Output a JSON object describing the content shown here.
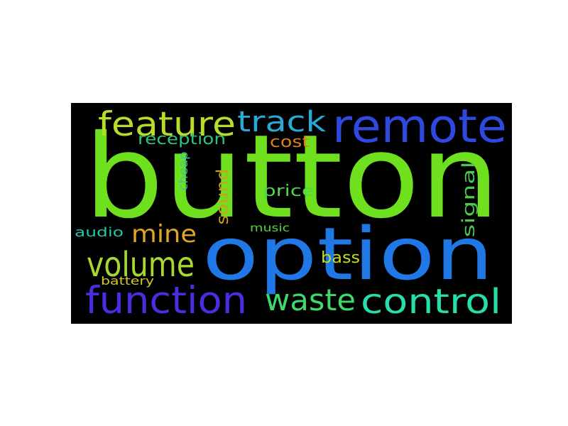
{
  "background_color": "#000000",
  "words": [
    {
      "text": "button",
      "color": "#6fe01e",
      "orientation": "horizontal"
    },
    {
      "text": "option",
      "color": "#1f78e6",
      "orientation": "horizontal"
    },
    {
      "text": "remote",
      "color": "#2f49e0",
      "orientation": "horizontal"
    },
    {
      "text": "feature",
      "color": "#b7dd29",
      "orientation": "horizontal"
    },
    {
      "text": "track",
      "color": "#2aa9d8",
      "orientation": "horizontal"
    },
    {
      "text": "volume",
      "color": "#a6d92f",
      "orientation": "horizontal"
    },
    {
      "text": "function",
      "color": "#4b2ce0",
      "orientation": "horizontal"
    },
    {
      "text": "waste",
      "color": "#3fd96b",
      "orientation": "horizontal"
    },
    {
      "text": "control",
      "color": "#25deaa",
      "orientation": "horizontal"
    },
    {
      "text": "mine",
      "color": "#e0a524",
      "orientation": "horizontal"
    },
    {
      "text": "reception",
      "color": "#2fc27b",
      "orientation": "horizontal"
    },
    {
      "text": "cost",
      "color": "#d97f1c",
      "orientation": "horizontal"
    },
    {
      "text": "price",
      "color": "#4fd64a",
      "orientation": "horizontal"
    },
    {
      "text": "bass",
      "color": "#c5dc26",
      "orientation": "horizontal"
    },
    {
      "text": "audio",
      "color": "#22c5a8",
      "orientation": "horizontal"
    },
    {
      "text": "music",
      "color": "#52d43a",
      "orientation": "horizontal"
    },
    {
      "text": "battery",
      "color": "#d7c42a",
      "orientation": "horizontal"
    },
    {
      "text": "sound",
      "color": "#cfa01e",
      "orientation": "vertical"
    },
    {
      "text": "cheap",
      "color": "#3bc3a1",
      "orientation": "vertical"
    },
    {
      "text": "signal",
      "color": "#4ec54d",
      "orientation": "vertical"
    }
  ]
}
